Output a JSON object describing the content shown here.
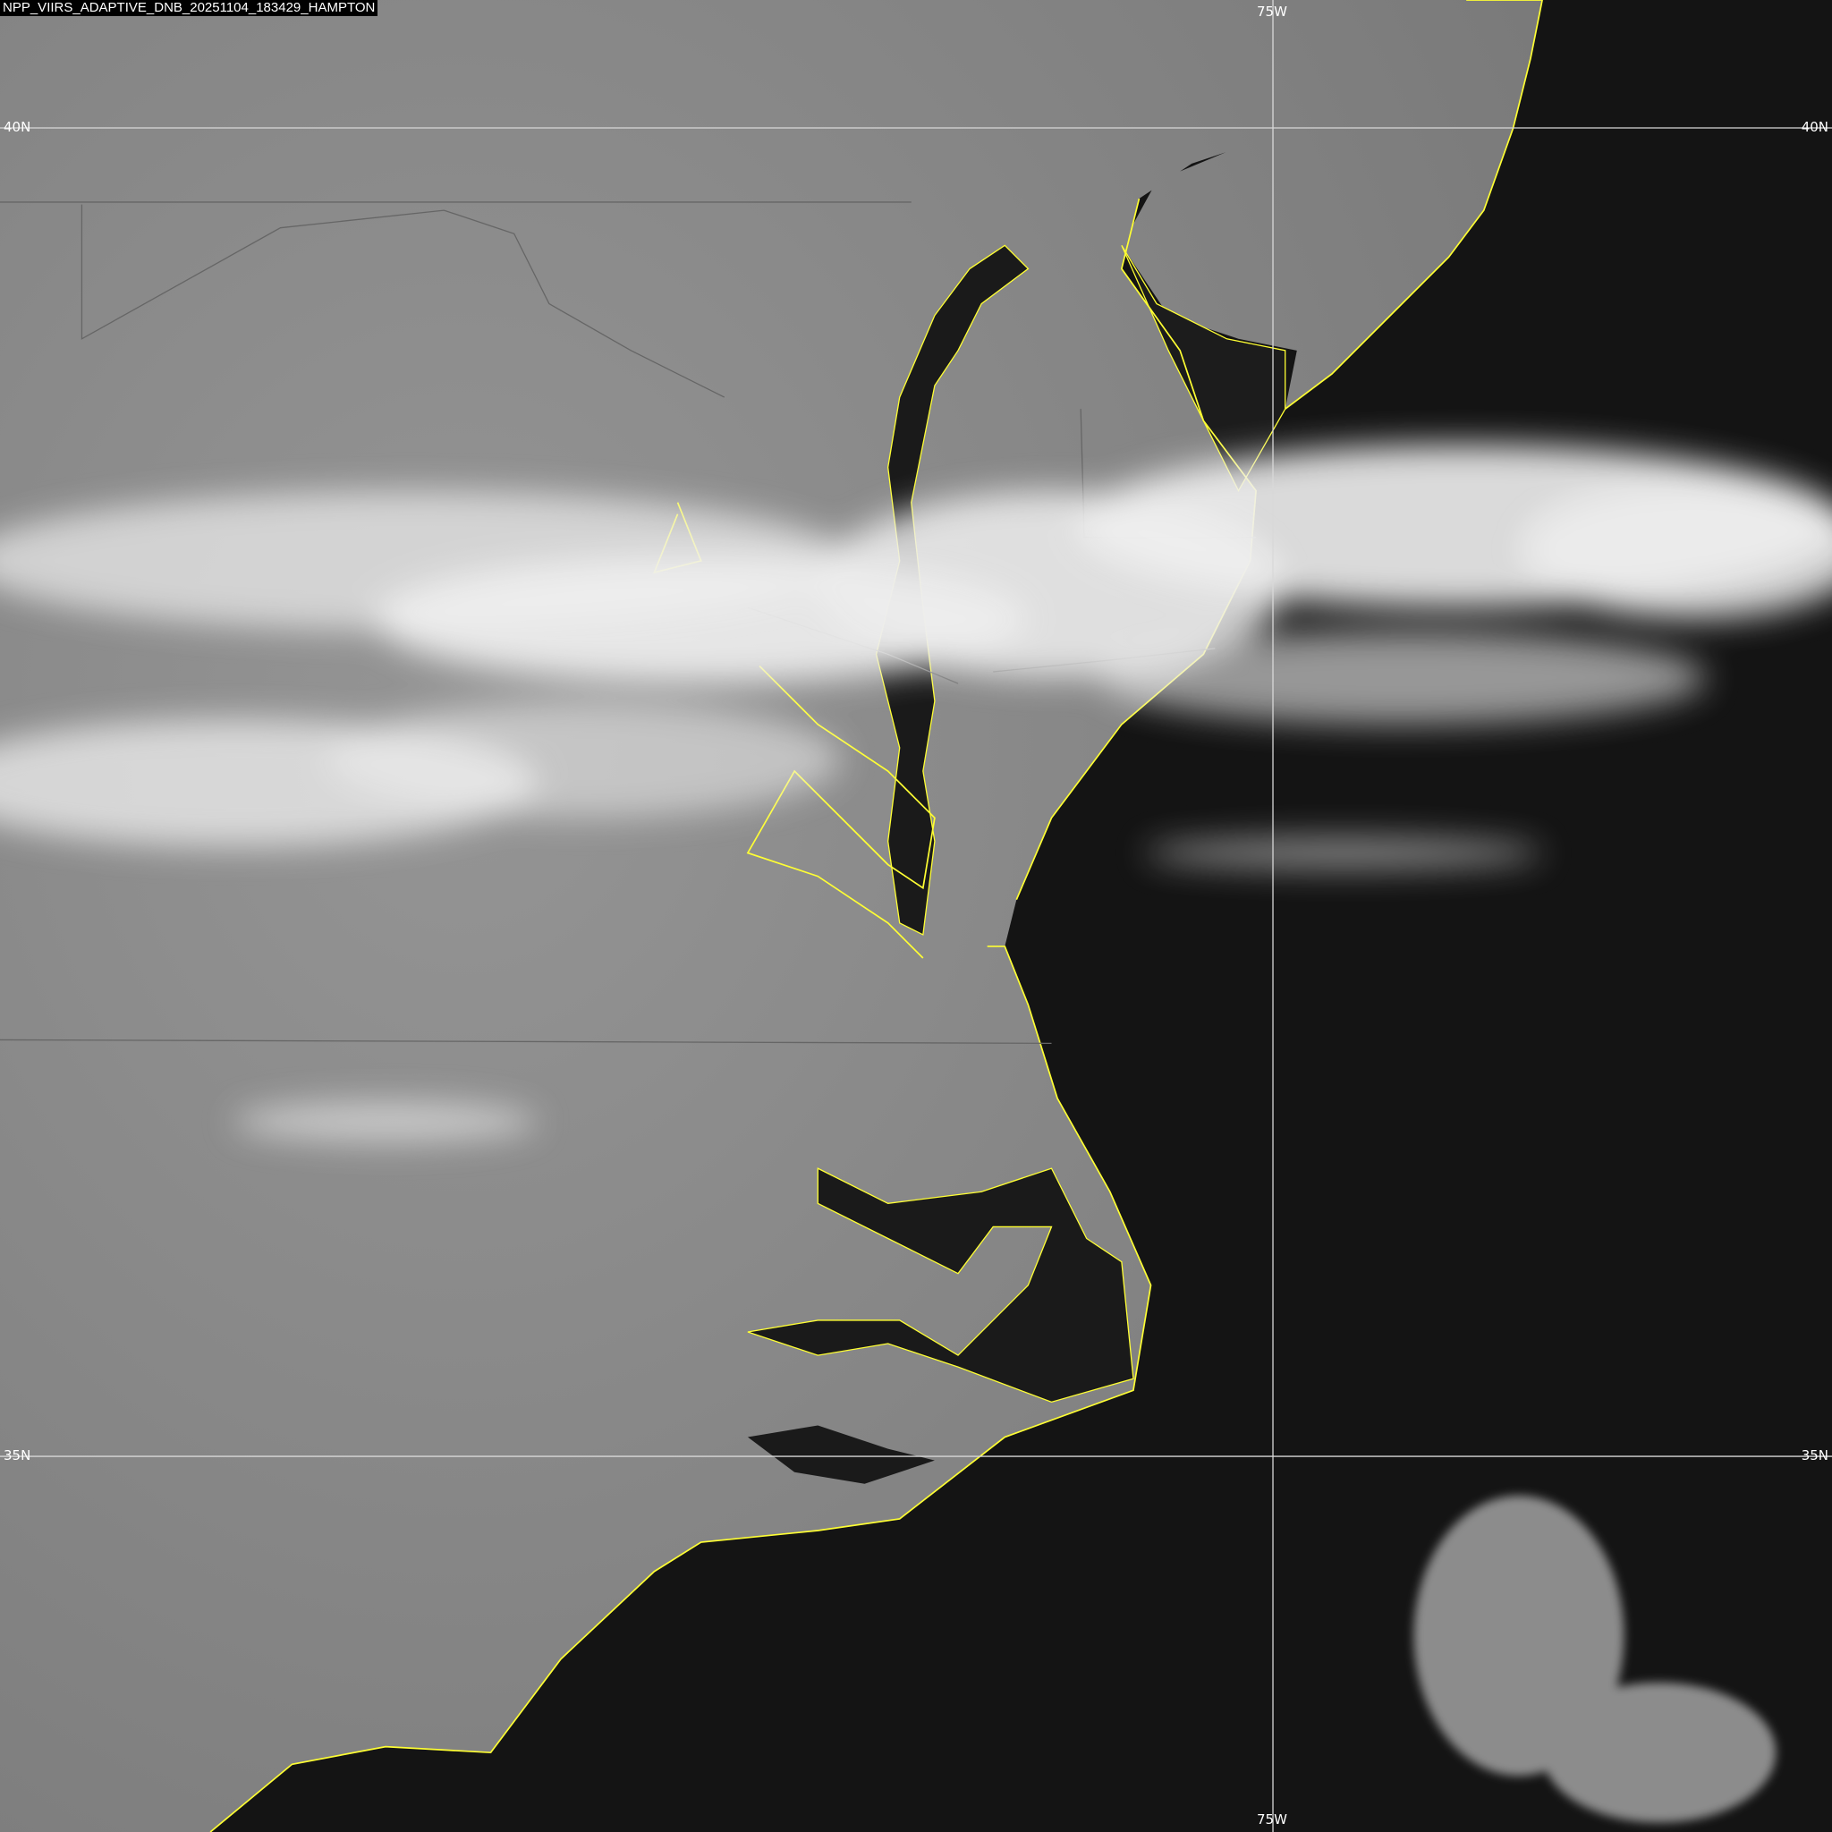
{
  "title": "NPP_VIIRS_ADAPTIVE_DNB_20251104_183429_HAMPTON",
  "grid": {
    "lat_labels": [
      "40N",
      "35N"
    ],
    "lon_labels": [
      "75W"
    ]
  },
  "colors": {
    "coastline": "#ffff33",
    "gridline": "#d8d8d8",
    "ocean": "#141414",
    "land": "#8a8a8a",
    "cloud": "#f2f2f2"
  }
}
